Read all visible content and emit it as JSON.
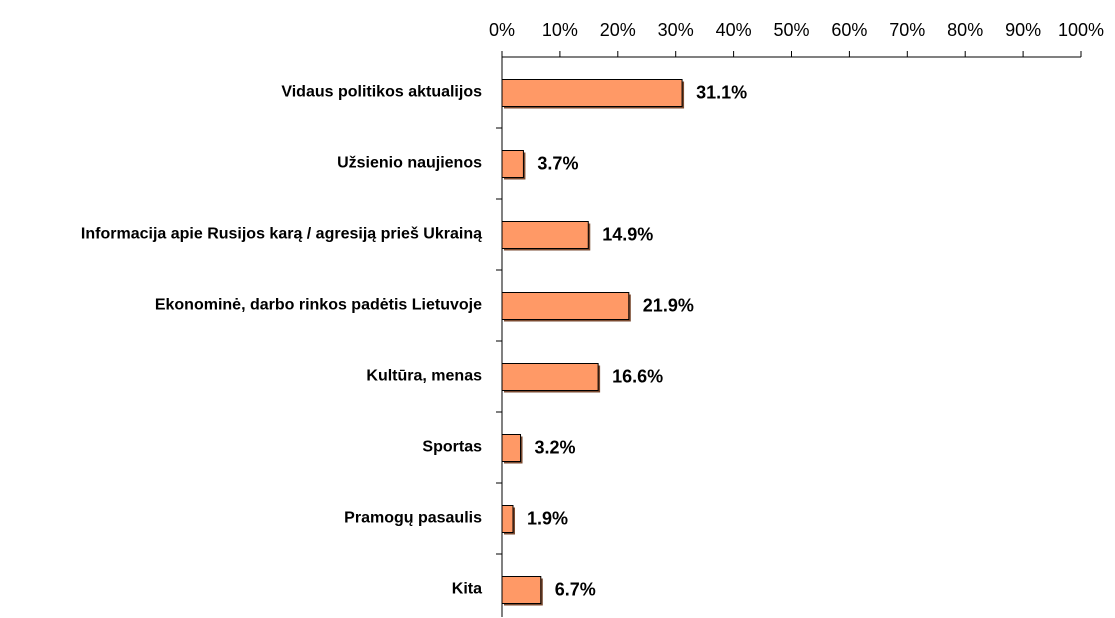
{
  "chart_data": {
    "type": "bar",
    "orientation": "horizontal",
    "categories": [
      "Vidaus politikos aktualijos",
      "Užsienio naujienos",
      "Informacija apie Rusijos karą / agresiją prieš Ukrainą",
      "Ekonominė, darbo rinkos padėtis Lietuvoje",
      "Kultūra, menas",
      "Sportas",
      "Pramogų pasaulis",
      "Kita"
    ],
    "values": [
      31.1,
      3.7,
      14.9,
      21.9,
      16.6,
      3.2,
      1.9,
      6.7
    ],
    "value_labels": [
      "31.1%",
      "3.7%",
      "14.9%",
      "21.9%",
      "16.6%",
      "3.2%",
      "1.9%",
      "6.7%"
    ],
    "color": "#ff9966",
    "xlim": [
      0,
      100
    ],
    "xticks": [
      {
        "value": 0,
        "label": "0%"
      },
      {
        "value": 10,
        "label": "10%"
      },
      {
        "value": 20,
        "label": "20%"
      },
      {
        "value": 30,
        "label": "30%"
      },
      {
        "value": 40,
        "label": "40%"
      },
      {
        "value": 50,
        "label": "50%"
      },
      {
        "value": 60,
        "label": "60%"
      },
      {
        "value": 70,
        "label": "70%"
      },
      {
        "value": 80,
        "label": "80%"
      },
      {
        "value": 90,
        "label": "90%"
      },
      {
        "value": 100,
        "label": "100%"
      }
    ],
    "grid": false
  }
}
